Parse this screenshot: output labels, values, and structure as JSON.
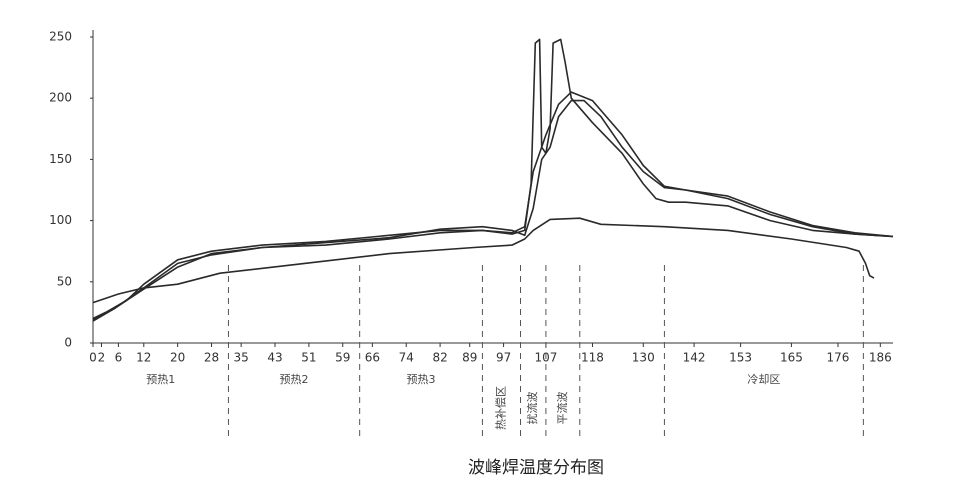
{
  "chart_data": {
    "type": "line",
    "title": "波峰焊温度分布图",
    "xlim": [
      0,
      189
    ],
    "ylim": [
      0,
      250
    ],
    "xticks": [
      0,
      2,
      6,
      12,
      20,
      28,
      35,
      43,
      51,
      59,
      66,
      74,
      82,
      89,
      97,
      107,
      118,
      130,
      142,
      153,
      165,
      176,
      186
    ],
    "yticks": [
      0,
      50,
      100,
      150,
      200,
      250
    ],
    "dividers": [
      32,
      63,
      92,
      101,
      107,
      115,
      135,
      182
    ],
    "zones": [
      "预热1",
      "预热2",
      "预热3",
      "热补偿区",
      "扰流波",
      "平流波",
      null,
      "冷却区"
    ],
    "series": [
      {
        "color": "#2a2a2a",
        "x": [
          0,
          3,
          8,
          12,
          20,
          28,
          40,
          55,
          70,
          82,
          92,
          99,
          102,
          103.5,
          104.5,
          105.5,
          106,
          107,
          108,
          108.7,
          110.5,
          111.5,
          113,
          118,
          125,
          130,
          133,
          136,
          140,
          150,
          160,
          170,
          180,
          189
        ],
        "values": [
          20,
          25,
          35,
          48,
          68,
          75,
          80,
          83,
          88,
          92,
          92,
          89,
          92,
          130,
          245,
          248,
          160,
          155,
          175,
          245,
          248,
          230,
          200,
          180,
          155,
          130,
          118,
          115,
          115,
          112,
          100,
          92,
          89,
          87
        ]
      },
      {
        "color": "#2a2a2a",
        "x": [
          0,
          5,
          12,
          20,
          28,
          40,
          55,
          70,
          82,
          92,
          99,
          102,
          104,
          107,
          110,
          113,
          118,
          125,
          130,
          135,
          140,
          150,
          160,
          170,
          180,
          189
        ],
        "values": [
          18,
          28,
          45,
          65,
          72,
          78,
          80,
          85,
          90,
          92,
          90,
          95,
          140,
          170,
          195,
          205,
          198,
          170,
          145,
          128,
          125,
          120,
          107,
          96,
          90,
          87
        ]
      },
      {
        "color": "#2a2a2a",
        "x": [
          0,
          5,
          12,
          20,
          28,
          40,
          55,
          70,
          82,
          92,
          99,
          102,
          104,
          106,
          108,
          110,
          113,
          116,
          120,
          125,
          130,
          135,
          140,
          150,
          160,
          170,
          180,
          189
        ],
        "values": [
          19,
          28,
          44,
          62,
          73,
          78,
          82,
          86,
          93,
          95,
          92,
          88,
          110,
          150,
          160,
          185,
          198,
          198,
          185,
          160,
          140,
          127,
          125,
          118,
          105,
          95,
          89,
          87
        ]
      },
      {
        "color": "#2a2a2a",
        "x": [
          0,
          6,
          12,
          20,
          30,
          50,
          70,
          90,
          99,
          102,
          104,
          108,
          115,
          120,
          135,
          150,
          165,
          178,
          181,
          182.5,
          183.5,
          184.5
        ],
        "values": [
          33,
          40,
          45,
          48,
          57,
          65,
          73,
          78,
          80,
          85,
          92,
          101,
          102,
          97,
          95,
          92,
          85,
          78,
          75,
          65,
          55,
          53
        ]
      }
    ]
  }
}
